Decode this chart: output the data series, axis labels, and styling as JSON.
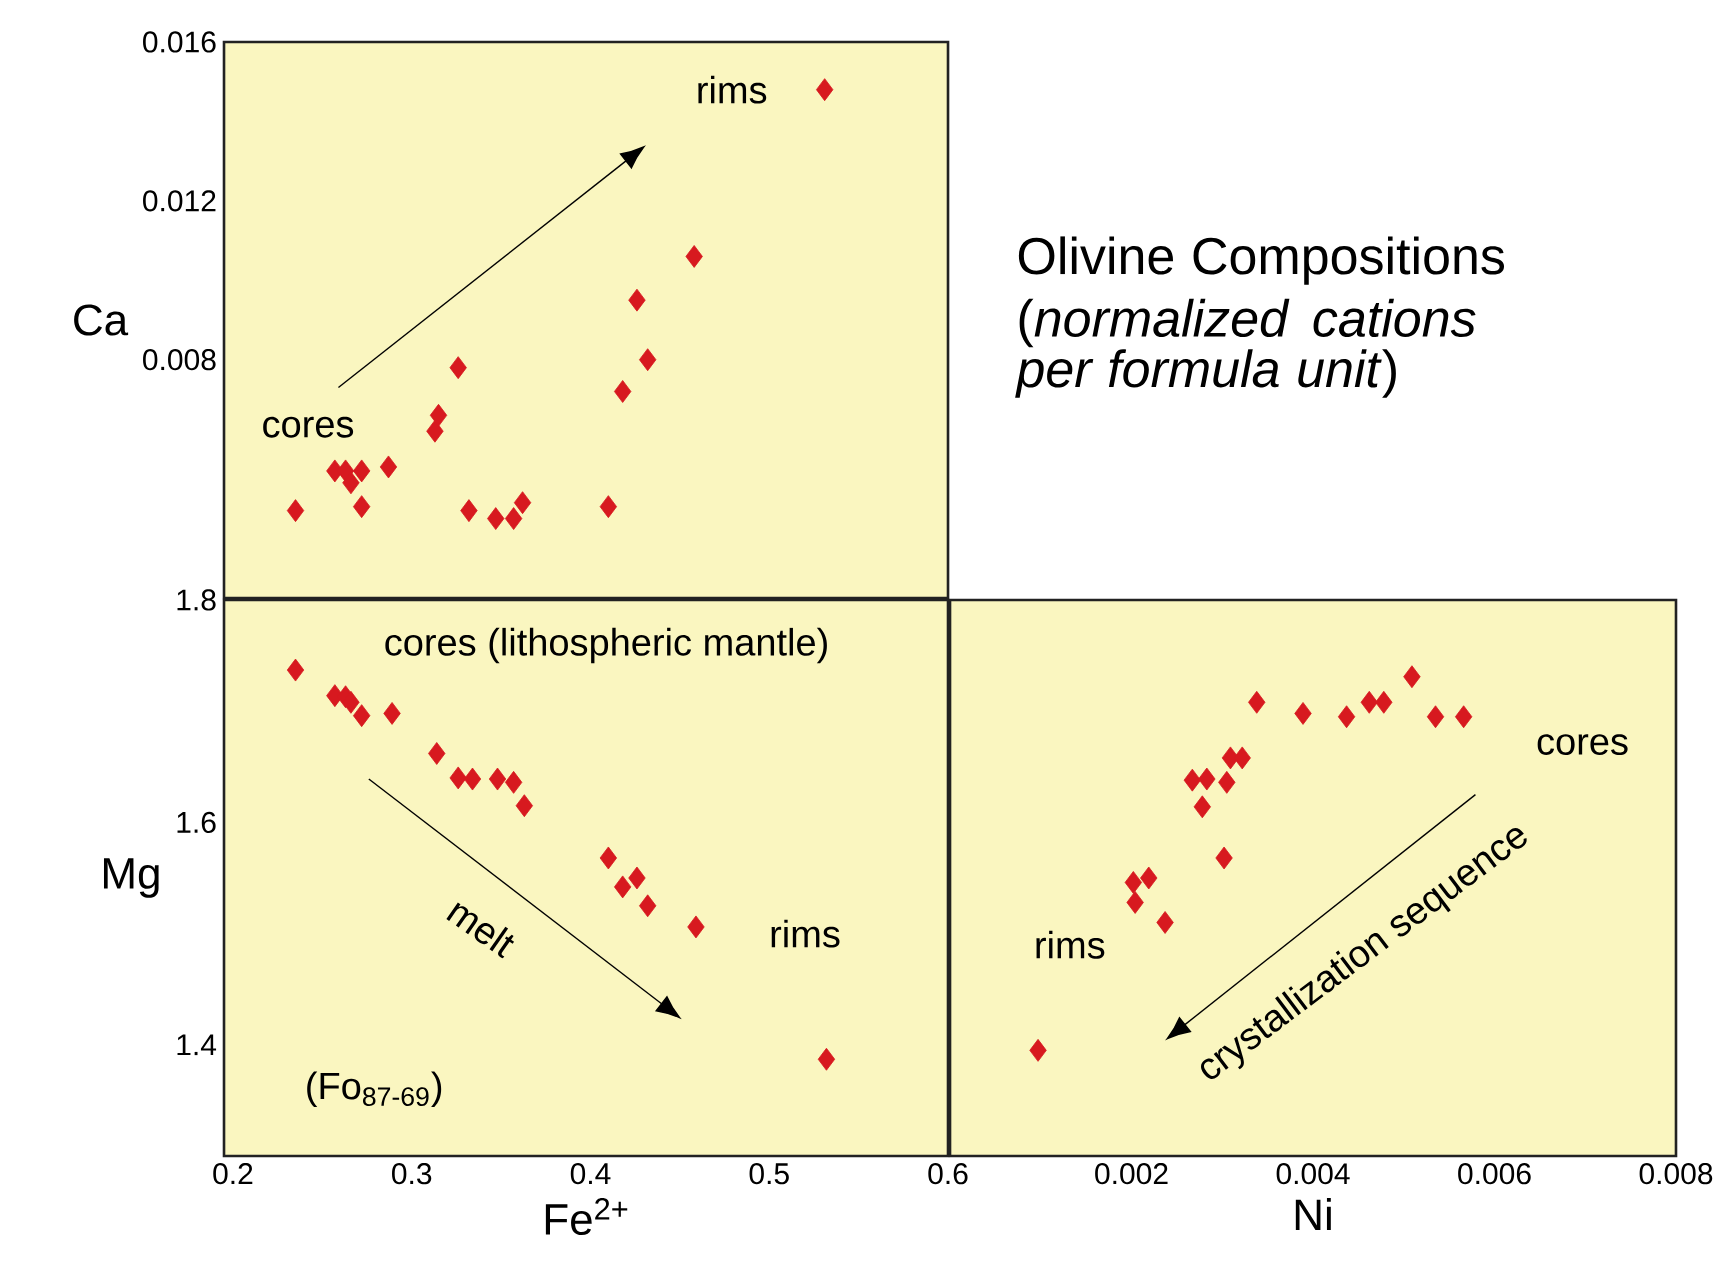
{
  "chart_data": [
    {
      "type": "scatter",
      "ylabel": "Ca",
      "xlim": [
        0.195,
        0.6
      ],
      "ylim": [
        0.002,
        0.016
      ],
      "yticks": [
        0.008,
        0.012,
        0.016
      ],
      "tick_labels": "y",
      "marker": "diamond",
      "series": [
        {
          "color": "#d7191f",
          "x": [
            0.235,
            0.257,
            0.263,
            0.266,
            0.272,
            0.272,
            0.287,
            0.313,
            0.315,
            0.326,
            0.332,
            0.347,
            0.357,
            0.362,
            0.41,
            0.418,
            0.426,
            0.432,
            0.458,
            0.531
          ],
          "values": [
            0.0042,
            0.0052,
            0.0052,
            0.0049,
            0.0052,
            0.0043,
            0.0053,
            0.0062,
            0.0066,
            0.0078,
            0.0042,
            0.004,
            0.004,
            0.0044,
            0.0043,
            0.0072,
            0.0095,
            0.008,
            0.0106,
            0.0148
          ]
        }
      ],
      "annotations": [
        "cores",
        "rims"
      ]
    },
    {
      "type": "scatter",
      "xlabel": "Fe$^{2+}$",
      "ylabel": "Mg",
      "xlim": [
        0.195,
        0.6
      ],
      "ylim": [
        1.3,
        1.8
      ],
      "xticks": [
        0.2,
        0.3,
        0.4,
        0.5,
        0.6
      ],
      "yticks": [
        1.4,
        1.6,
        1.8
      ],
      "marker": "diamond",
      "series": [
        {
          "color": "#d7191f",
          "x": [
            0.235,
            0.257,
            0.263,
            0.266,
            0.272,
            0.289,
            0.314,
            0.326,
            0.334,
            0.348,
            0.357,
            0.363,
            0.41,
            0.418,
            0.426,
            0.432,
            0.459,
            0.532
          ],
          "values": [
            1.737,
            1.714,
            1.713,
            1.708,
            1.696,
            1.698,
            1.662,
            1.64,
            1.639,
            1.639,
            1.636,
            1.615,
            1.568,
            1.542,
            1.55,
            1.525,
            1.506,
            1.387
          ]
        }
      ],
      "annotations": [
        "cores  (lithospheric mantle)",
        "melt",
        "rims",
        "(Fo$_{87-69}$)"
      ]
    },
    {
      "type": "scatter",
      "xlabel": "Ni",
      "xlim": [
        0,
        0.008
      ],
      "ylim": [
        1.3,
        1.8
      ],
      "xticks": [
        0.002,
        0.004,
        0.006,
        0.008
      ],
      "tick_labels": "x",
      "marker": "diamond",
      "series": [
        {
          "color": "#d7191f",
          "x": [
            0.00097,
            0.00202,
            0.00219,
            0.00204,
            0.00237,
            0.00302,
            0.00267,
            0.00283,
            0.00278,
            0.00305,
            0.00309,
            0.00322,
            0.00338,
            0.00389,
            0.00437,
            0.00462,
            0.00478,
            0.00509,
            0.00535,
            0.00566
          ],
          "values": [
            1.395,
            1.546,
            1.55,
            1.528,
            1.51,
            1.568,
            1.638,
            1.639,
            1.614,
            1.636,
            1.658,
            1.658,
            1.708,
            1.698,
            1.695,
            1.708,
            1.708,
            1.731,
            1.695,
            1.695
          ]
        }
      ],
      "annotations": [
        "cores",
        "rims",
        "crystallization sequence"
      ]
    },
    {
      "type": "other",
      "title": "Olivine Compositions",
      "subtitle": "(*normalized cations per formula unit*)"
    }
  ]
}
